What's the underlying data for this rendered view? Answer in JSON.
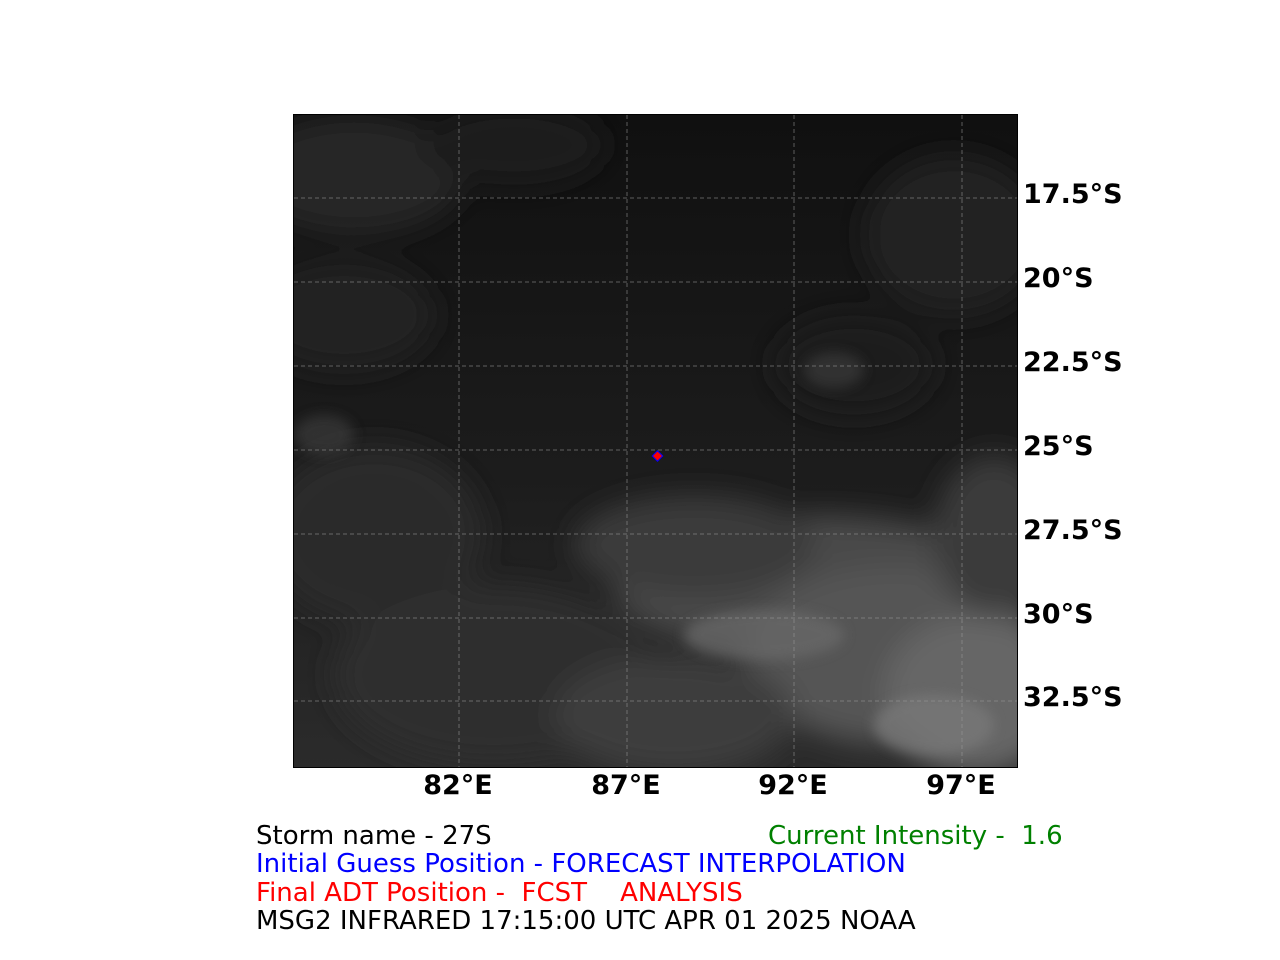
{
  "map": {
    "lat_labels": [
      "17.5°S",
      "20°S",
      "22.5°S",
      "25°S",
      "27.5°S",
      "30°S",
      "32.5°S"
    ],
    "lon_labels": [
      "82°E",
      "87°E",
      "92°E",
      "97°E"
    ],
    "gridline_style": "dashed",
    "imagery": "infrared",
    "marker_colors": {
      "initial_guess": "#0000ff",
      "final_adt": "#ff0000"
    }
  },
  "info": {
    "storm_name": "Storm name - 27S",
    "current_intensity": "Current Intensity -  1.6",
    "initial_guess": "Initial Guess Position - FORECAST INTERPOLATION",
    "final_adt": "Final ADT Position -  FCST    ANALYSIS",
    "satellite": "MSG2 INFRARED 17:15:00 UTC APR 01 2025 NOAA",
    "colors": {
      "storm_name": "#000000",
      "current_intensity": "#008000",
      "initial_guess": "#0000ff",
      "final_adt": "#ff0000",
      "satellite": "#000000"
    }
  }
}
